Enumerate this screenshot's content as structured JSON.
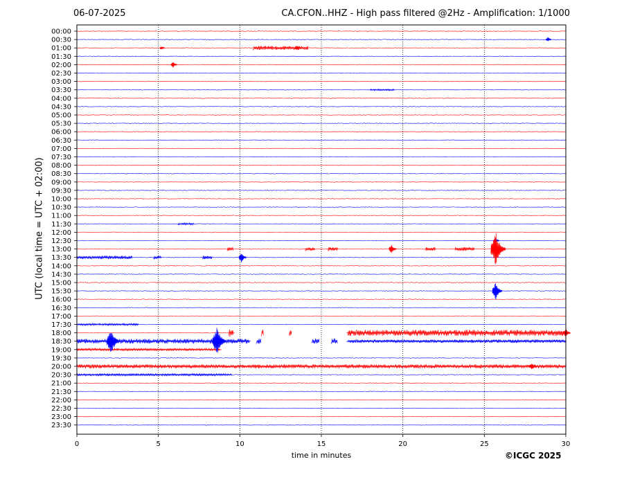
{
  "header": {
    "date": "06-07-2025",
    "title": "CA.CFON..HHZ - High pass filtered @2Hz - Amplification: 1/1000"
  },
  "footer": {
    "copyright": "©ICGC 2025"
  },
  "colors": {
    "odd_trace": "#ff0000",
    "even_trace": "#0000ff",
    "frame": "#000000"
  },
  "chart_data": {
    "type": "line",
    "title": "CA.CFON..HHZ - High pass filtered @2Hz - Amplification: 1/1000",
    "xlabel": "time in minutes",
    "ylabel": "UTC (local time = UTC + 02:00)",
    "xlim": [
      0,
      30
    ],
    "xticks": [
      0,
      5,
      10,
      15,
      20,
      25,
      30
    ],
    "vertical_gridlines": [
      5,
      10,
      15,
      20,
      25
    ],
    "rows": [
      "00:00",
      "00:30",
      "01:00",
      "01:30",
      "02:00",
      "02:30",
      "03:00",
      "03:30",
      "04:00",
      "04:30",
      "05:00",
      "05:30",
      "06:00",
      "06:30",
      "07:00",
      "07:30",
      "08:00",
      "08:30",
      "09:00",
      "09:30",
      "10:00",
      "10:30",
      "11:00",
      "11:30",
      "12:00",
      "12:30",
      "13:00",
      "13:30",
      "14:00",
      "14:30",
      "15:00",
      "15:30",
      "16:00",
      "16:30",
      "17:00",
      "17:30",
      "18:00",
      "18:30",
      "19:00",
      "19:30",
      "20:00",
      "20:30",
      "21:00",
      "21:30",
      "22:00",
      "22:30",
      "23:00",
      "23:30"
    ],
    "row_colors": [
      "red",
      "blue"
    ],
    "events": [
      {
        "row": "00:30",
        "minute": 28.9,
        "amplitude": 0.4
      },
      {
        "row": "01:00",
        "minute": 13.5,
        "amplitude": 0.4
      },
      {
        "row": "01:00",
        "minute": 5.2,
        "amplitude": 0.3
      },
      {
        "row": "02:00",
        "minute": 5.9,
        "amplitude": 0.5
      },
      {
        "row": "12:30",
        "minute": 25.7,
        "amplitude": 0.4
      },
      {
        "row": "13:00",
        "minute": 19.3,
        "amplitude": 0.8
      },
      {
        "row": "13:00",
        "minute": 25.7,
        "amplitude": 2.5
      },
      {
        "row": "13:30",
        "minute": 10.1,
        "amplitude": 0.8
      },
      {
        "row": "15:30",
        "minute": 25.7,
        "amplitude": 1.4
      },
      {
        "row": "18:00",
        "minute": 30.0,
        "amplitude": 0.7
      },
      {
        "row": "18:30",
        "minute": 2.1,
        "amplitude": 2.0
      },
      {
        "row": "18:30",
        "minute": 8.6,
        "amplitude": 2.2
      },
      {
        "row": "20:00",
        "minute": 27.9,
        "amplitude": 0.6
      }
    ],
    "bursts": [
      {
        "row": "01:00",
        "start": 10.8,
        "end": 14.2,
        "amplitude": 0.3
      },
      {
        "row": "13:00",
        "start": 9.2,
        "end": 9.6,
        "amplitude": 0.3
      },
      {
        "row": "13:00",
        "start": 14.0,
        "end": 14.6,
        "amplitude": 0.25
      },
      {
        "row": "13:00",
        "start": 15.4,
        "end": 16.0,
        "amplitude": 0.3
      },
      {
        "row": "13:00",
        "start": 21.4,
        "end": 22.0,
        "amplitude": 0.3
      },
      {
        "row": "13:00",
        "start": 23.2,
        "end": 24.4,
        "amplitude": 0.3
      },
      {
        "row": "13:30",
        "start": 0.0,
        "end": 3.4,
        "amplitude": 0.25
      },
      {
        "row": "13:30",
        "start": 4.7,
        "end": 5.2,
        "amplitude": 0.25
      },
      {
        "row": "13:30",
        "start": 7.7,
        "end": 8.3,
        "amplitude": 0.25
      },
      {
        "row": "17:30",
        "start": 0.0,
        "end": 3.8,
        "amplitude": 0.15
      },
      {
        "row": "18:00",
        "start": 9.3,
        "end": 9.6,
        "amplitude": 0.6
      },
      {
        "row": "18:00",
        "start": 11.3,
        "end": 11.45,
        "amplitude": 0.5
      },
      {
        "row": "18:00",
        "start": 13.0,
        "end": 13.2,
        "amplitude": 0.5
      },
      {
        "row": "18:00",
        "start": 16.6,
        "end": 30.0,
        "amplitude": 0.45
      },
      {
        "row": "18:30",
        "start": 0.0,
        "end": 10.6,
        "amplitude": 0.35
      },
      {
        "row": "18:30",
        "start": 11.0,
        "end": 11.3,
        "amplitude": 0.4
      },
      {
        "row": "18:30",
        "start": 14.4,
        "end": 14.9,
        "amplitude": 0.4
      },
      {
        "row": "18:30",
        "start": 15.6,
        "end": 16.0,
        "amplitude": 0.4
      },
      {
        "row": "18:30",
        "start": 16.6,
        "end": 30.0,
        "amplitude": 0.25
      },
      {
        "row": "19:00",
        "start": 0.0,
        "end": 8.8,
        "amplitude": 0.2
      },
      {
        "row": "20:00",
        "start": 0.0,
        "end": 30.0,
        "amplitude": 0.3
      },
      {
        "row": "20:30",
        "start": 0.0,
        "end": 9.5,
        "amplitude": 0.18
      },
      {
        "row": "11:30",
        "start": 6.2,
        "end": 7.2,
        "amplitude": 0.15
      },
      {
        "row": "03:30",
        "start": 18.0,
        "end": 19.5,
        "amplitude": 0.12
      }
    ],
    "gaps": [
      {
        "row": "18:00",
        "start": 9.7,
        "end": 16.5
      },
      {
        "row": "18:30",
        "start": 10.7,
        "end": 16.5
      },
      {
        "row": "19:00",
        "start": 8.9,
        "end": 30.0
      }
    ]
  }
}
